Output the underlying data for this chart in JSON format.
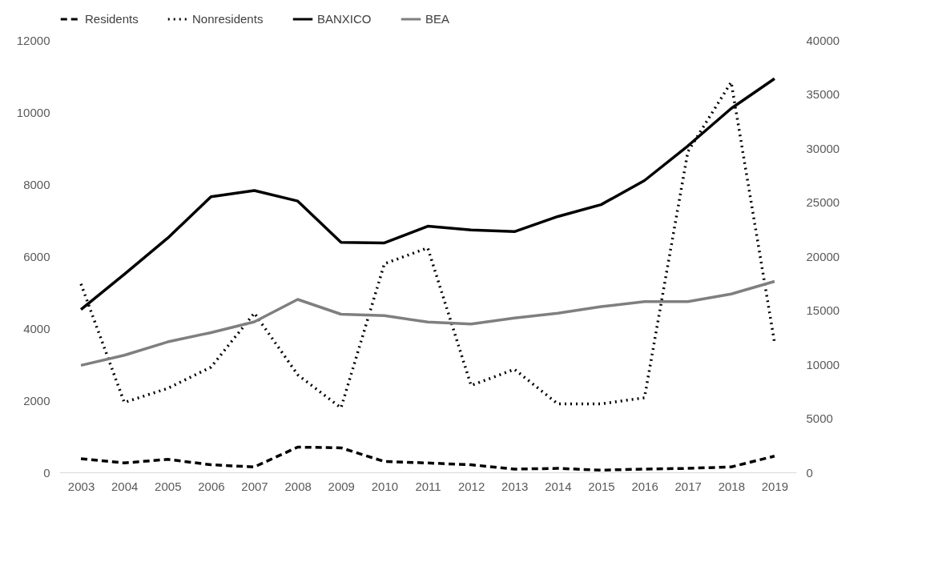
{
  "chart_data": {
    "type": "line",
    "categories": [
      "2003",
      "2004",
      "2005",
      "2006",
      "2007",
      "2008",
      "2009",
      "2010",
      "2011",
      "2012",
      "2013",
      "2014",
      "2015",
      "2016",
      "2017",
      "2018",
      "2019"
    ],
    "series": [
      {
        "name": "Residents",
        "color": "#000000",
        "line_style": "dashed",
        "values": [
          380,
          260,
          360,
          210,
          150,
          700,
          680,
          300,
          260,
          210,
          90,
          110,
          60,
          90,
          110,
          150,
          450
        ]
      },
      {
        "name": "Nonresidents",
        "color": "#000000",
        "line_style": "dotted",
        "values": [
          5230,
          1940,
          2330,
          2920,
          4420,
          2710,
          1790,
          5790,
          6230,
          2410,
          2860,
          1900,
          1900,
          2070,
          8900,
          10830,
          3600
        ]
      },
      {
        "name": "BANXICO",
        "color": "#000000",
        "line_style": "solid",
        "axis": "y2",
        "values": [
          15070,
          18330,
          21670,
          25500,
          26070,
          25100,
          21270,
          21230,
          22770,
          22430,
          22270,
          23670,
          24770,
          27000,
          30200,
          33670,
          36430
        ]
      },
      {
        "name": "BEA",
        "color": "#7f7f7f",
        "line_style": "solid",
        "axis": "y2",
        "values": [
          9900,
          10830,
          12070,
          12930,
          13930,
          16000,
          14630,
          14500,
          13900,
          13730,
          14270,
          14730,
          15330,
          15800,
          15800,
          16500,
          17670
        ]
      }
    ],
    "ylim": [
      0,
      12000
    ],
    "yticks": [
      0,
      2000,
      4000,
      6000,
      8000,
      10000,
      12000
    ],
    "y2lim": [
      0,
      40000
    ],
    "y2ticks": [
      0,
      5000,
      10000,
      15000,
      20000,
      25000,
      30000,
      35000,
      40000
    ],
    "grid": false,
    "legend": "top",
    "marker": "none"
  }
}
